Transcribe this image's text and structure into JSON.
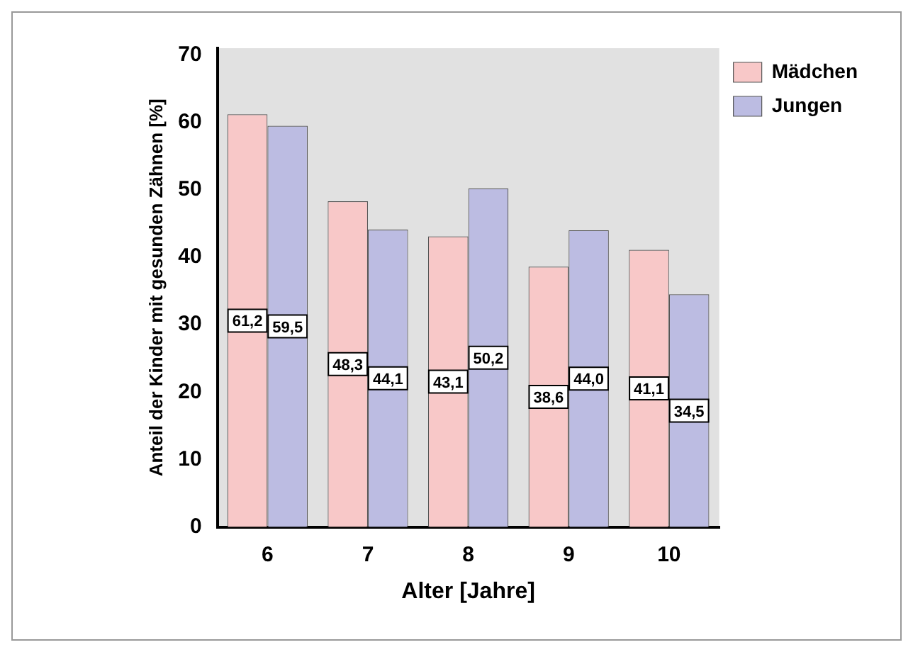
{
  "chart_data": {
    "type": "bar",
    "xlabel": "Alter [Jahre]",
    "ylabel": "Anteil der Kinder mit gesunden Zähnen [%]",
    "categories": [
      "6",
      "7",
      "8",
      "9",
      "10"
    ],
    "series": [
      {
        "name": "Mädchen",
        "color": "#f8c8c8",
        "values": [
          61.2,
          48.3,
          43.1,
          38.6,
          41.1
        ],
        "value_labels": [
          "61,2",
          "48,3",
          "43,1",
          "38,6",
          "41,1"
        ]
      },
      {
        "name": "Jungen",
        "color": "#bcbce2",
        "values": [
          59.5,
          44.1,
          50.2,
          44.0,
          34.5
        ],
        "value_labels": [
          "59,5",
          "44,1",
          "50,2",
          "44,0",
          "34,5"
        ]
      }
    ],
    "ylim": [
      0,
      71
    ],
    "yticks": [
      0,
      10,
      20,
      30,
      40,
      50,
      60,
      70
    ],
    "grid": false,
    "legend": "top right"
  }
}
